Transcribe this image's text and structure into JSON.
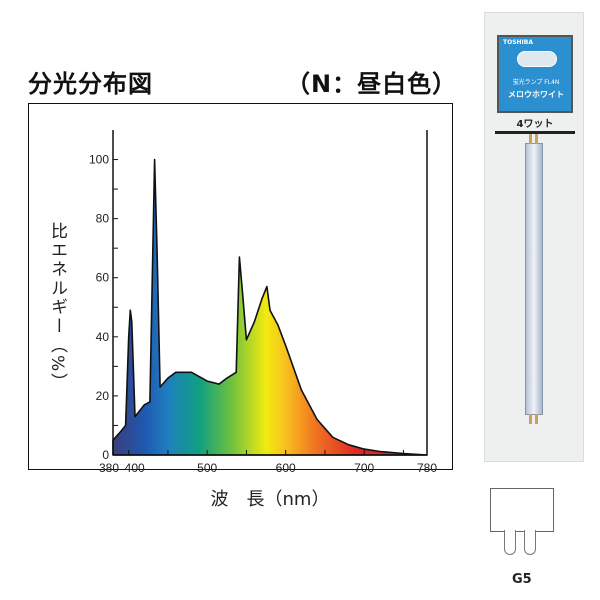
{
  "header": {
    "title": "分光分布図",
    "subtitle": "（N：昼白色）"
  },
  "product": {
    "brand": "TOSHIBA",
    "model": "蛍光ランプ FL4N",
    "name": "メロウホワイト",
    "wattage": "4ワット",
    "base_label": "G5"
  },
  "chart_data": {
    "type": "area",
    "title": "分光分布図",
    "xlabel": "波　長（nm）",
    "ylabel": "比エネルギー（%）",
    "xlim": [
      380,
      780
    ],
    "ylim": [
      0,
      110
    ],
    "xticks": [
      380,
      400,
      500,
      600,
      700,
      780
    ],
    "yticks": [
      0,
      20,
      40,
      60,
      80,
      100
    ],
    "grid": false,
    "fill": "visible-spectrum gradient",
    "x": [
      380,
      390,
      396,
      400,
      402,
      404,
      408,
      420,
      427,
      430,
      433,
      436,
      440,
      450,
      460,
      480,
      500,
      515,
      525,
      537,
      541,
      545,
      550,
      560,
      570,
      576,
      580,
      590,
      600,
      620,
      640,
      660,
      680,
      700,
      720,
      750,
      780
    ],
    "y": [
      5,
      8,
      10,
      40,
      49,
      45,
      13,
      17,
      18,
      60,
      100,
      70,
      23,
      26,
      28,
      28,
      25,
      24,
      26,
      28,
      67,
      55,
      39,
      45,
      53,
      57,
      49,
      44,
      37,
      22,
      12,
      6,
      3.5,
      2,
      1.2,
      0.5,
      0
    ]
  }
}
